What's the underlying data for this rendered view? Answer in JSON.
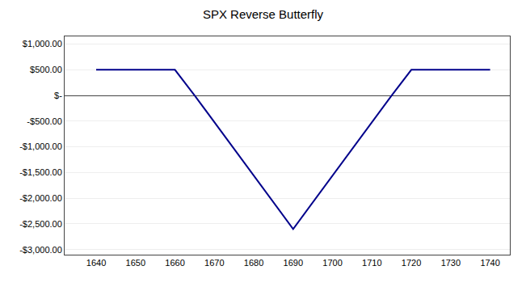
{
  "chart_data": {
    "type": "line",
    "title": "SPX Reverse Butterfly",
    "x": [
      1640,
      1650,
      1660,
      1665,
      1690,
      1715,
      1720,
      1730,
      1740
    ],
    "values": [
      500,
      500,
      500,
      0,
      -2600,
      0,
      500,
      500,
      500
    ],
    "color": "#00008B",
    "xlim": [
      1632,
      1745
    ],
    "ylim": [
      -3100,
      1150
    ],
    "xticks": [
      1640,
      1650,
      1660,
      1670,
      1680,
      1690,
      1700,
      1710,
      1720,
      1730,
      1740
    ],
    "yticks": [
      {
        "value": 1000,
        "label": "$1,000.00"
      },
      {
        "value": 500,
        "label": "$500.00"
      },
      {
        "value": 0,
        "label": "$-"
      },
      {
        "value": -500,
        "label": "-$500.00"
      },
      {
        "value": -1000,
        "label": "-$1,000.00"
      },
      {
        "value": -1500,
        "label": "-$1,500.00"
      },
      {
        "value": -2000,
        "label": "-$2,000.00"
      },
      {
        "value": -2500,
        "label": "-$2,500.00"
      },
      {
        "value": -3000,
        "label": "-$3,000.00"
      }
    ],
    "grid": "y"
  }
}
